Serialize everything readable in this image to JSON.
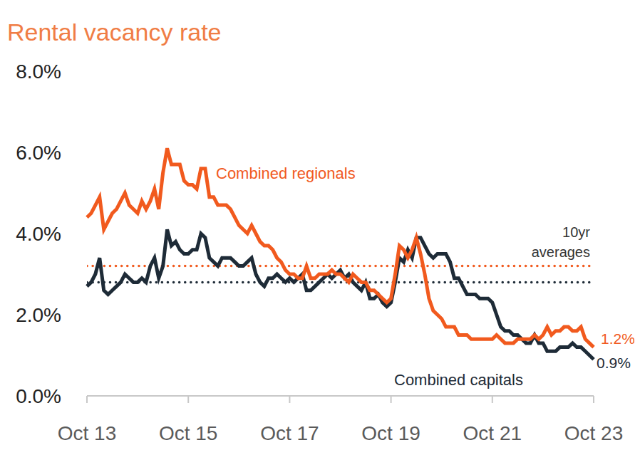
{
  "chart_data": {
    "type": "line",
    "title": "Rental vacancy rate",
    "categories": [
      "Oct 13",
      null,
      null,
      null,
      null,
      null,
      null,
      null,
      null,
      null,
      null,
      null,
      null,
      null,
      null,
      null,
      null,
      null,
      null,
      null,
      null,
      null,
      null,
      null,
      "Oct 15",
      null,
      null,
      null,
      null,
      null,
      null,
      null,
      null,
      null,
      null,
      null,
      null,
      null,
      null,
      null,
      null,
      null,
      null,
      null,
      null,
      null,
      null,
      null,
      "Oct 17",
      null,
      null,
      null,
      null,
      null,
      null,
      null,
      null,
      null,
      null,
      null,
      null,
      null,
      null,
      null,
      null,
      null,
      null,
      null,
      null,
      null,
      null,
      null,
      "Oct 19",
      null,
      null,
      null,
      null,
      null,
      null,
      null,
      null,
      null,
      null,
      null,
      null,
      null,
      null,
      null,
      null,
      null,
      null,
      null,
      null,
      null,
      null,
      null,
      "Oct 21",
      null,
      null,
      null,
      null,
      null,
      null,
      null,
      null,
      null,
      null,
      null,
      null,
      null,
      null,
      null,
      null,
      null,
      null,
      null,
      null,
      null,
      null,
      null,
      "Oct 23"
    ],
    "series": [
      {
        "name": "Combined regionals",
        "color": "#f15a1e",
        "average": 3.2,
        "values": [
          4.4,
          4.5,
          4.7,
          4.9,
          4.1,
          4.3,
          4.5,
          4.6,
          4.8,
          5.0,
          4.7,
          4.6,
          4.5,
          4.8,
          4.6,
          4.8,
          5.1,
          4.6,
          5.5,
          6.1,
          5.7,
          5.7,
          5.7,
          5.3,
          5.2,
          5.2,
          5.1,
          5.6,
          5.6,
          4.9,
          4.9,
          4.7,
          4.7,
          4.7,
          4.6,
          4.4,
          4.2,
          4.1,
          4.0,
          4.2,
          4.0,
          3.8,
          3.7,
          3.7,
          3.6,
          3.4,
          3.3,
          3.1,
          3.0,
          3.0,
          2.9,
          2.9,
          3.2,
          2.9,
          2.9,
          3.0,
          3.0,
          3.0,
          3.1,
          3.0,
          3.0,
          2.9,
          2.8,
          3.0,
          2.9,
          2.8,
          2.8,
          2.6,
          2.6,
          2.5,
          2.4,
          2.3,
          2.4,
          3.0,
          3.7,
          3.6,
          3.4,
          3.6,
          3.9,
          3.5,
          3.0,
          2.4,
          2.1,
          2.0,
          1.9,
          1.7,
          1.7,
          1.7,
          1.5,
          1.5,
          1.5,
          1.4,
          1.4,
          1.4,
          1.4,
          1.4,
          1.4,
          1.5,
          1.4,
          1.3,
          1.3,
          1.3,
          1.4,
          1.4,
          1.4,
          1.4,
          1.5,
          1.4,
          1.5,
          1.7,
          1.5,
          1.6,
          1.6,
          1.7,
          1.7,
          1.6,
          1.6,
          1.7,
          1.4,
          1.3,
          1.2
        ],
        "value_labels": [
          null,
          null,
          null,
          null,
          null,
          null,
          null,
          null,
          null,
          null,
          null,
          null,
          null,
          null,
          null,
          null,
          null,
          null,
          null,
          null,
          null,
          null,
          null,
          null,
          null,
          null,
          null,
          null,
          null,
          null,
          null,
          null,
          null,
          null,
          null,
          null,
          null,
          null,
          null,
          null,
          null,
          null,
          null,
          null,
          null,
          null,
          null,
          null,
          null,
          null,
          null,
          null,
          null,
          null,
          null,
          null,
          null,
          null,
          null,
          null,
          null,
          null,
          null,
          null,
          null,
          null,
          null,
          null,
          null,
          null,
          null,
          null,
          null,
          null,
          null,
          null,
          null,
          null,
          null,
          null,
          null,
          null,
          null,
          null,
          null,
          null,
          null,
          null,
          null,
          null,
          null,
          null,
          null,
          null,
          null,
          null,
          null,
          null,
          null,
          null,
          null,
          null,
          null,
          null,
          null,
          null,
          null,
          null,
          null,
          null,
          null,
          null,
          null,
          null,
          null,
          null,
          null,
          null,
          null,
          null,
          "1.2%"
        ]
      },
      {
        "name": "Combined capitals",
        "color": "#1e2b37",
        "average": 2.8,
        "values": [
          2.7,
          2.8,
          3.0,
          3.4,
          2.6,
          2.5,
          2.6,
          2.7,
          2.8,
          3.0,
          2.9,
          2.8,
          2.8,
          2.9,
          2.8,
          3.2,
          3.4,
          2.9,
          3.2,
          4.1,
          3.7,
          3.8,
          3.6,
          3.5,
          3.5,
          3.6,
          3.6,
          4.0,
          3.9,
          3.4,
          3.3,
          3.2,
          3.4,
          3.4,
          3.4,
          3.3,
          3.2,
          3.2,
          3.3,
          3.4,
          3.0,
          2.8,
          2.7,
          2.9,
          2.9,
          3.0,
          2.9,
          2.8,
          2.9,
          2.8,
          2.9,
          3.0,
          2.6,
          2.6,
          2.7,
          2.8,
          2.9,
          3.0,
          2.9,
          3.0,
          3.1,
          2.9,
          3.0,
          2.8,
          2.7,
          2.6,
          2.8,
          2.4,
          2.4,
          2.5,
          2.3,
          2.2,
          2.3,
          2.8,
          3.4,
          3.3,
          3.6,
          3.4,
          3.9,
          3.9,
          3.7,
          3.5,
          3.4,
          3.5,
          3.5,
          3.5,
          3.3,
          2.9,
          2.9,
          2.7,
          2.5,
          2.5,
          2.5,
          2.4,
          2.4,
          2.4,
          2.3,
          2.0,
          1.7,
          1.6,
          1.6,
          1.5,
          1.5,
          1.4,
          1.3,
          1.3,
          1.5,
          1.3,
          1.3,
          1.1,
          1.1,
          1.1,
          1.2,
          1.2,
          1.2,
          1.3,
          1.2,
          1.2,
          1.1,
          1.0,
          0.9
        ],
        "value_labels": [
          null,
          null,
          null,
          null,
          null,
          null,
          null,
          null,
          null,
          null,
          null,
          null,
          null,
          null,
          null,
          null,
          null,
          null,
          null,
          null,
          null,
          null,
          null,
          null,
          null,
          null,
          null,
          null,
          null,
          null,
          null,
          null,
          null,
          null,
          null,
          null,
          null,
          null,
          null,
          null,
          null,
          null,
          null,
          null,
          null,
          null,
          null,
          null,
          null,
          null,
          null,
          null,
          null,
          null,
          null,
          null,
          null,
          null,
          null,
          null,
          null,
          null,
          null,
          null,
          null,
          null,
          null,
          null,
          null,
          null,
          null,
          null,
          null,
          null,
          null,
          null,
          null,
          null,
          null,
          null,
          null,
          null,
          null,
          null,
          null,
          null,
          null,
          null,
          null,
          null,
          null,
          null,
          null,
          null,
          null,
          null,
          null,
          null,
          null,
          null,
          null,
          null,
          null,
          null,
          null,
          null,
          null,
          null,
          null,
          null,
          null,
          null,
          null,
          null,
          null,
          null,
          null,
          null,
          null,
          null,
          "0.9%"
        ]
      }
    ],
    "annotations": [
      "10yr averages"
    ],
    "ylim": [
      0,
      8
    ],
    "yticks": [
      {
        "value": 0,
        "label": "0.0%"
      },
      {
        "value": 2,
        "label": "2.0%"
      },
      {
        "value": 4,
        "label": "4.0%"
      },
      {
        "value": 6,
        "label": "6.0%"
      },
      {
        "value": 8,
        "label": "8.0%"
      }
    ],
    "grid": false,
    "legend": false
  }
}
